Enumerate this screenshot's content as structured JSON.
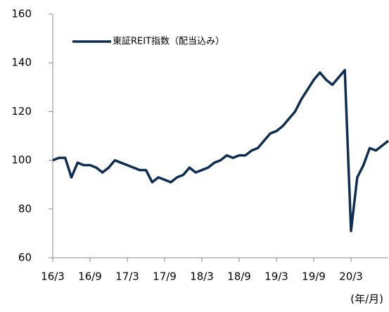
{
  "chart_data": {
    "type": "line",
    "legend": "東証REIT指数（配当込み）",
    "x_unit": "(年/月)",
    "categories": [
      "16/3",
      null,
      null,
      null,
      null,
      null,
      "16/9",
      null,
      null,
      null,
      null,
      null,
      "17/3",
      null,
      null,
      null,
      null,
      null,
      "17/9",
      null,
      null,
      null,
      null,
      null,
      "18/3",
      null,
      null,
      null,
      null,
      null,
      "18/9",
      null,
      null,
      null,
      null,
      null,
      "19/3",
      null,
      null,
      null,
      null,
      null,
      "19/9",
      null,
      null,
      null,
      null,
      null,
      "20/3",
      null,
      null,
      null,
      null,
      null,
      null
    ],
    "series": [
      {
        "name": "東証REIT指数（配当込み）",
        "color": "#0d2e52",
        "values": [
          100,
          101,
          101,
          93,
          99,
          98,
          98,
          97,
          95,
          97,
          100,
          99,
          98,
          97,
          96,
          96,
          91,
          93,
          92,
          91,
          93,
          94,
          97,
          95,
          96,
          97,
          99,
          100,
          102,
          101,
          102,
          102,
          104,
          105,
          108,
          111,
          112,
          114,
          117,
          120,
          125,
          129,
          133,
          136,
          133,
          131,
          134,
          137,
          71,
          93,
          98,
          105,
          104,
          106,
          108
        ]
      }
    ],
    "ylim": [
      60,
      160
    ],
    "yticks": [
      60,
      80,
      100,
      120,
      140,
      160
    ]
  }
}
